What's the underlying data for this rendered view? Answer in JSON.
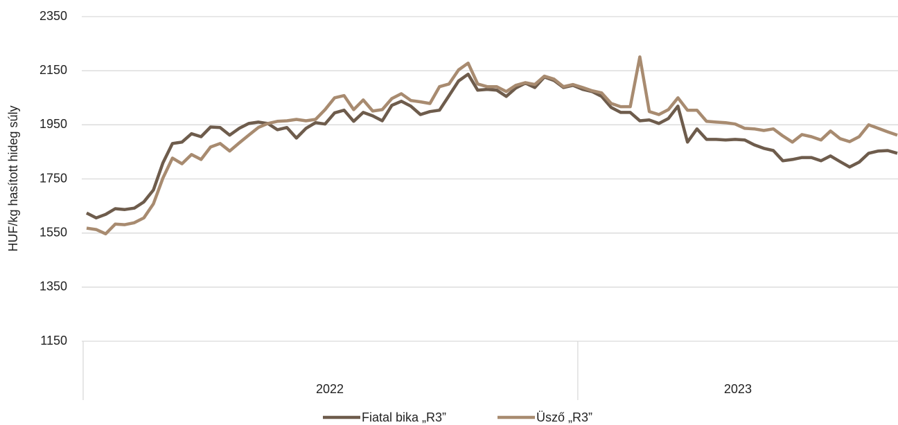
{
  "chart_data": {
    "type": "line",
    "y_axis_label": "HUF/kg hasított hideg súly",
    "categories": [
      null,
      null,
      null,
      null,
      null,
      null,
      null,
      null,
      null,
      null,
      null,
      null,
      null,
      null,
      null,
      null,
      null,
      null,
      null,
      null,
      null,
      null,
      null,
      null,
      null,
      null,
      null,
      null,
      null,
      null,
      null,
      null,
      null,
      null,
      null,
      null,
      null,
      null,
      null,
      null,
      null,
      null,
      null,
      null,
      null,
      null,
      null,
      null,
      null,
      null,
      null,
      null,
      null,
      null,
      null,
      null,
      null,
      null,
      null,
      null,
      null,
      null,
      null,
      null,
      null,
      null,
      null,
      null,
      null,
      null,
      null,
      null,
      null,
      null,
      null,
      null,
      null,
      null,
      null,
      null,
      null,
      null,
      null,
      null,
      null,
      null
    ],
    "groups": [
      {
        "label": "2022",
        "count": 52
      },
      {
        "label": "2023",
        "count": 34
      }
    ],
    "series": [
      {
        "name": "Fiatal bika „R3”",
        "color": "#6e5c4c",
        "values": [
          1624,
          1606,
          1619,
          1640,
          1637,
          1642,
          1665,
          1709,
          1809,
          1881,
          1886,
          1917,
          1906,
          1942,
          1940,
          1912,
          1937,
          1955,
          1960,
          1955,
          1932,
          1940,
          1901,
          1937,
          1958,
          1953,
          1994,
          2004,
          1963,
          1996,
          1983,
          1965,
          2022,
          2037,
          2019,
          1988,
          1999,
          2004,
          2058,
          2112,
          2137,
          2078,
          2081,
          2078,
          2055,
          2086,
          2104,
          2088,
          2127,
          2114,
          2088,
          2096,
          2081,
          2073,
          2055,
          2014,
          1996,
          1996,
          1965,
          1968,
          1955,
          1973,
          2019,
          1886,
          1935,
          1896,
          1896,
          1894,
          1896,
          1894,
          1876,
          1863,
          1855,
          1817,
          1822,
          1829,
          1829,
          1817,
          1835,
          1814,
          1794,
          1812,
          1845,
          1853,
          1855,
          1845
        ]
      },
      {
        "name": "Üsző „R3”",
        "color": "#a88b70",
        "values": [
          1568,
          1563,
          1547,
          1583,
          1581,
          1588,
          1606,
          1658,
          1753,
          1827,
          1806,
          1840,
          1822,
          1868,
          1881,
          1853,
          1883,
          1912,
          1940,
          1955,
          1963,
          1965,
          1970,
          1965,
          1970,
          2006,
          2050,
          2058,
          2006,
          2042,
          2001,
          2006,
          2047,
          2065,
          2040,
          2035,
          2029,
          2091,
          2101,
          2153,
          2178,
          2101,
          2091,
          2091,
          2073,
          2096,
          2106,
          2099,
          2130,
          2119,
          2091,
          2099,
          2088,
          2076,
          2068,
          2029,
          2017,
          2017,
          2201,
          1999,
          1988,
          2006,
          2050,
          2004,
          2004,
          1963,
          1960,
          1958,
          1953,
          1937,
          1935,
          1929,
          1935,
          1909,
          1886,
          1914,
          1906,
          1894,
          1927,
          1899,
          1888,
          1906,
          1950,
          1937,
          1924,
          1912
        ]
      }
    ],
    "ylim": [
      1150,
      2350
    ],
    "yticks": [
      1150,
      1350,
      1550,
      1750,
      1950,
      2150,
      2350
    ],
    "grid": true,
    "legend": "bottom"
  }
}
